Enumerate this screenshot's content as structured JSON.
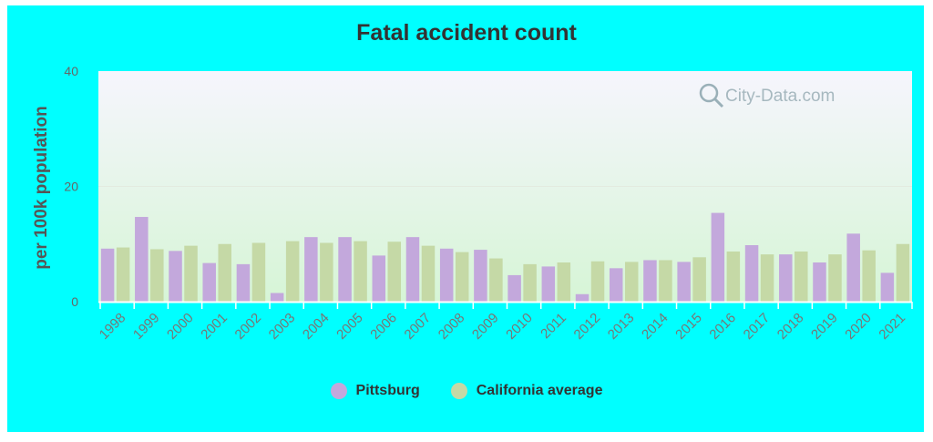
{
  "chart_data": {
    "type": "bar",
    "title": "Fatal accident count",
    "ylabel": "per 100k population",
    "xlabel": "",
    "ylim": [
      0,
      40
    ],
    "yticks": [
      0,
      20,
      40
    ],
    "categories": [
      "1998",
      "1999",
      "2000",
      "2001",
      "2002",
      "2003",
      "2004",
      "2005",
      "2006",
      "2007",
      "2008",
      "2009",
      "2010",
      "2011",
      "2012",
      "2013",
      "2014",
      "2015",
      "2016",
      "2017",
      "2018",
      "2019",
      "2020",
      "2021"
    ],
    "series": [
      {
        "name": "Pittsburg",
        "color": "#c3a8dc",
        "values": [
          9.2,
          14.7,
          8.8,
          6.7,
          6.5,
          1.5,
          11.2,
          11.2,
          8.0,
          11.2,
          9.2,
          9.0,
          4.6,
          6.1,
          1.3,
          5.8,
          7.2,
          6.9,
          15.4,
          9.8,
          8.2,
          6.8,
          11.8,
          5.0
        ]
      },
      {
        "name": "California average",
        "color": "#c5d9a6",
        "values": [
          9.4,
          9.1,
          9.7,
          10.0,
          10.2,
          10.5,
          10.2,
          10.5,
          10.4,
          9.7,
          8.6,
          7.5,
          6.5,
          6.8,
          7.0,
          6.9,
          7.2,
          7.7,
          8.7,
          8.2,
          8.7,
          8.2,
          8.9,
          10.0
        ]
      }
    ],
    "watermark": "City-Data.com",
    "grid": true,
    "legend_position": "bottom"
  }
}
